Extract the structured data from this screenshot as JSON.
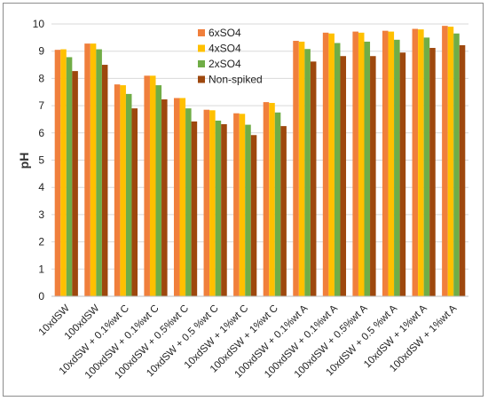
{
  "chart_data": {
    "type": "bar",
    "title": "",
    "xlabel": "",
    "ylabel": "pH",
    "ylim": [
      0,
      10
    ],
    "yticks": [
      "0",
      "1",
      "2",
      "3",
      "4",
      "5",
      "6",
      "7",
      "8",
      "9",
      "10"
    ],
    "grid": "horizontal",
    "legend_position": "top-center",
    "categories": [
      "10xdSW",
      "100xdSW",
      "10xdSW + 0.1%wt C",
      "100xdSW + 0.1%wt C",
      "100xdSW + 0.5%wt C",
      "10xdSW + 0.5 %wt C",
      "10xdSW + 1%wt C",
      "100xdSW + 1%wt C",
      "100xdSW + 0.1%wt A",
      "100xdSW + 0.1%wt A",
      "100xdSW + 0.5%wt A",
      "10xdSW + 0.5 %wt A",
      "10xdSW + 1%wt A",
      "100xdSW + 1%wt A"
    ],
    "series": [
      {
        "name": "6xSO4",
        "color": "#f07f3c",
        "values": [
          9.05,
          9.28,
          7.78,
          8.1,
          7.28,
          6.85,
          6.72,
          7.13,
          9.38,
          9.68,
          9.72,
          9.75,
          9.82,
          9.93
        ]
      },
      {
        "name": "4xSO4",
        "color": "#ffc000",
        "values": [
          9.07,
          9.28,
          7.75,
          8.1,
          7.28,
          6.83,
          6.7,
          7.1,
          9.35,
          9.65,
          9.68,
          9.72,
          9.8,
          9.9
        ]
      },
      {
        "name": "2xSO4",
        "color": "#70ad47",
        "values": [
          8.78,
          9.07,
          7.43,
          7.75,
          6.9,
          6.45,
          6.3,
          6.75,
          9.08,
          9.3,
          9.35,
          9.42,
          9.5,
          9.65
        ]
      },
      {
        "name": "Non-spiked",
        "color": "#9e480e",
        "values": [
          8.27,
          8.5,
          6.9,
          7.23,
          6.42,
          6.32,
          5.92,
          6.25,
          8.62,
          8.82,
          8.82,
          8.95,
          9.12,
          9.22
        ]
      }
    ]
  }
}
